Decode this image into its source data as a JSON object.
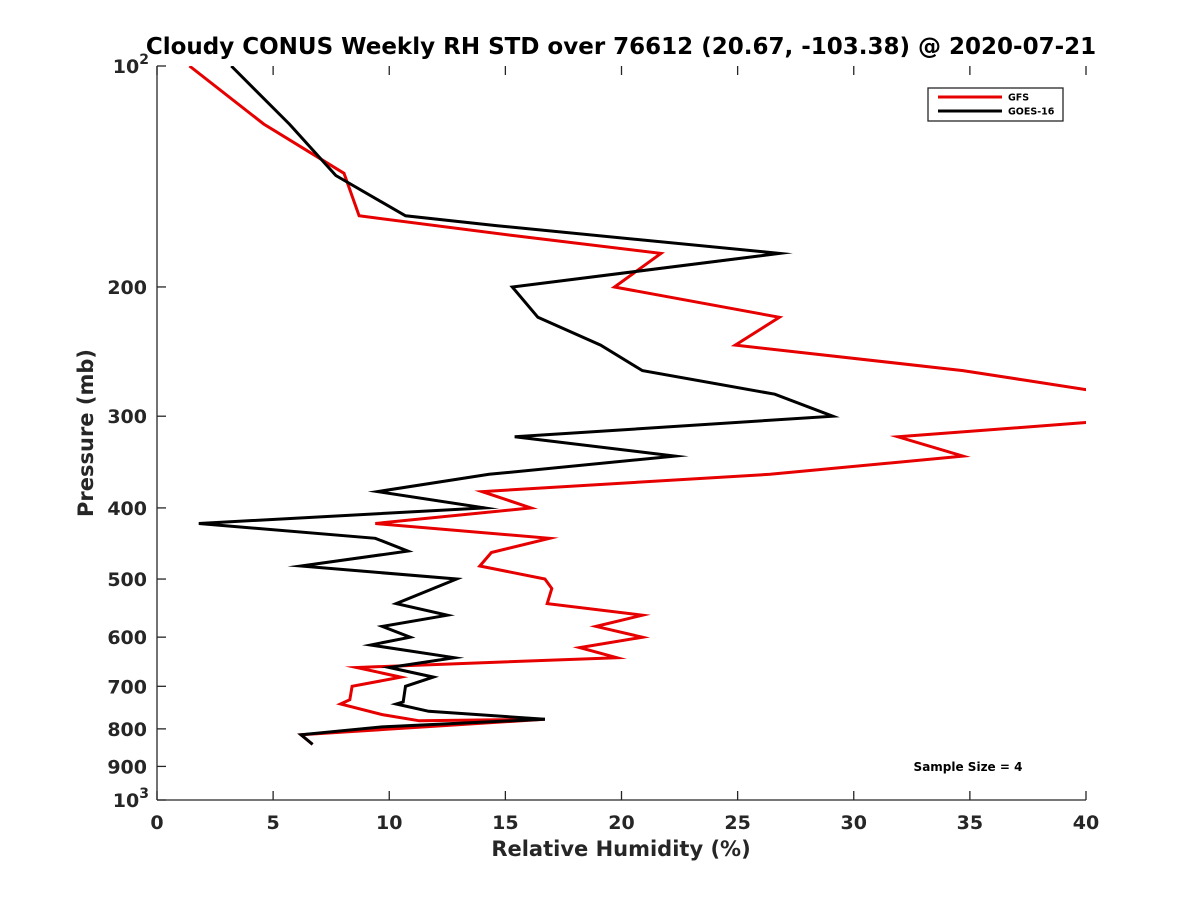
{
  "chart_data": {
    "type": "line",
    "title": "Cloudy CONUS Weekly RH STD over 76612 (20.67, -103.38) @ 2020-07-21",
    "xlabel": "Relative Humidity (%)",
    "ylabel": "Pressure (mb)",
    "xlim": [
      0,
      40
    ],
    "ylim": [
      100,
      1000
    ],
    "y_scale": "log",
    "y_reversed": true,
    "grid": false,
    "x_ticks": [
      0,
      5,
      10,
      15,
      20,
      25,
      30,
      35,
      40
    ],
    "x_tick_labels": [
      "0",
      "5",
      "10",
      "15",
      "20",
      "25",
      "30",
      "35",
      "40"
    ],
    "y_ticks": [
      100,
      200,
      300,
      400,
      500,
      600,
      700,
      800,
      900,
      1000
    ],
    "y_tick_labels": [
      "10^2",
      "200",
      "300",
      "400",
      "500",
      "600",
      "700",
      "800",
      "900",
      "10^3"
    ],
    "legend": {
      "position": "top-right",
      "entries": [
        "GFS",
        "GOES-16"
      ]
    },
    "annotations": [
      {
        "text": "Sample Size = 4",
        "position": "bottom-right"
      }
    ],
    "series": [
      {
        "name": "GFS",
        "color": "#e60000",
        "points": [
          {
            "rh": 1.4,
            "p": 100
          },
          {
            "rh": 4.6,
            "p": 120
          },
          {
            "rh": 8.05,
            "p": 140
          },
          {
            "rh": 8.7,
            "p": 160
          },
          {
            "rh": 15.2,
            "p": 170
          },
          {
            "rh": 21.7,
            "p": 180
          },
          {
            "rh": 19.7,
            "p": 200
          },
          {
            "rh": 26.8,
            "p": 220
          },
          {
            "rh": 24.9,
            "p": 240
          },
          {
            "rh": 34.7,
            "p": 260
          },
          {
            "rh": 40.0,
            "p": 276
          },
          {
            "rh": 42.5,
            "p": 290
          },
          {
            "rh": 40.0,
            "p": 306
          },
          {
            "rh": 31.9,
            "p": 320
          },
          {
            "rh": 34.7,
            "p": 340
          },
          {
            "rh": 26.4,
            "p": 360
          },
          {
            "rh": 14.0,
            "p": 380
          },
          {
            "rh": 16.1,
            "p": 400
          },
          {
            "rh": 9.4,
            "p": 420
          },
          {
            "rh": 16.9,
            "p": 440
          },
          {
            "rh": 14.4,
            "p": 460
          },
          {
            "rh": 13.9,
            "p": 480
          },
          {
            "rh": 16.7,
            "p": 500
          },
          {
            "rh": 17.0,
            "p": 515
          },
          {
            "rh": 16.8,
            "p": 540
          },
          {
            "rh": 20.9,
            "p": 560
          },
          {
            "rh": 18.9,
            "p": 580
          },
          {
            "rh": 20.9,
            "p": 600
          },
          {
            "rh": 18.2,
            "p": 620
          },
          {
            "rh": 19.8,
            "p": 640
          },
          {
            "rh": 8.6,
            "p": 660
          },
          {
            "rh": 10.5,
            "p": 680
          },
          {
            "rh": 8.4,
            "p": 700
          },
          {
            "rh": 8.3,
            "p": 730
          },
          {
            "rh": 7.9,
            "p": 740
          },
          {
            "rh": 9.7,
            "p": 765
          },
          {
            "rh": 11.3,
            "p": 780
          },
          {
            "rh": 16.7,
            "p": 776
          },
          {
            "rh": 6.2,
            "p": 815
          },
          {
            "rh": 6.7,
            "p": 840
          }
        ]
      },
      {
        "name": "GOES-16",
        "color": "#000000",
        "points": [
          {
            "rh": 3.2,
            "p": 100
          },
          {
            "rh": 5.7,
            "p": 120
          },
          {
            "rh": 7.7,
            "p": 141
          },
          {
            "rh": 10.7,
            "p": 160
          },
          {
            "rh": 14.6,
            "p": 165
          },
          {
            "rh": 26.8,
            "p": 180
          },
          {
            "rh": 15.3,
            "p": 200
          },
          {
            "rh": 16.4,
            "p": 220
          },
          {
            "rh": 19.1,
            "p": 240
          },
          {
            "rh": 20.9,
            "p": 260
          },
          {
            "rh": 26.6,
            "p": 280
          },
          {
            "rh": 29.1,
            "p": 300
          },
          {
            "rh": 15.4,
            "p": 320
          },
          {
            "rh": 22.3,
            "p": 340
          },
          {
            "rh": 14.3,
            "p": 360
          },
          {
            "rh": 9.5,
            "p": 380
          },
          {
            "rh": 14.1,
            "p": 400
          },
          {
            "rh": 1.8,
            "p": 420
          },
          {
            "rh": 9.4,
            "p": 440
          },
          {
            "rh": 10.8,
            "p": 458
          },
          {
            "rh": 6.2,
            "p": 480
          },
          {
            "rh": 12.9,
            "p": 500
          },
          {
            "rh": 10.3,
            "p": 540
          },
          {
            "rh": 12.5,
            "p": 560
          },
          {
            "rh": 9.7,
            "p": 580
          },
          {
            "rh": 10.9,
            "p": 600
          },
          {
            "rh": 9.2,
            "p": 615
          },
          {
            "rh": 12.8,
            "p": 640
          },
          {
            "rh": 10.0,
            "p": 660
          },
          {
            "rh": 11.9,
            "p": 680
          },
          {
            "rh": 10.7,
            "p": 700
          },
          {
            "rh": 10.6,
            "p": 735
          },
          {
            "rh": 10.3,
            "p": 740
          },
          {
            "rh": 11.7,
            "p": 757
          },
          {
            "rh": 16.7,
            "p": 776
          },
          {
            "rh": 9.7,
            "p": 795
          },
          {
            "rh": 6.2,
            "p": 815
          },
          {
            "rh": 6.7,
            "p": 840
          }
        ]
      }
    ]
  }
}
